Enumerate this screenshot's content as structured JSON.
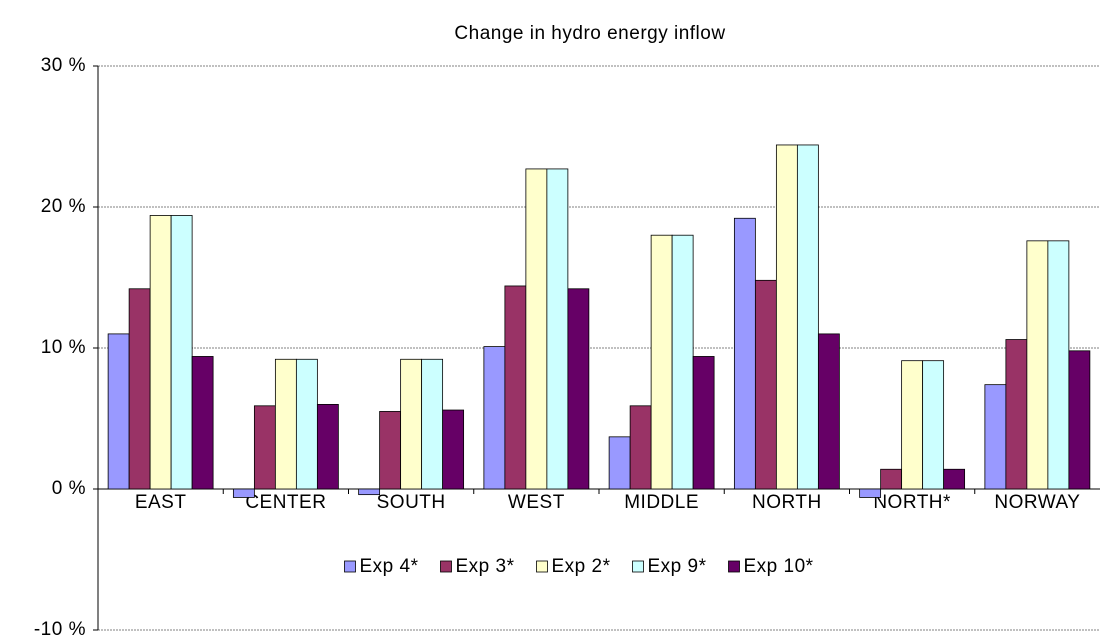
{
  "chart_data": {
    "type": "bar",
    "title": "Change in hydro energy inflow",
    "categories": [
      "EAST",
      "CENTER",
      "SOUTH",
      "WEST",
      "MIDDLE",
      "NORTH",
      "NORTH*",
      "NORWAY"
    ],
    "series": [
      {
        "name": "Exp 4*",
        "color": "#9999ff",
        "values": [
          11.0,
          -0.6,
          -0.4,
          10.1,
          3.7,
          19.2,
          -0.6,
          7.4
        ]
      },
      {
        "name": "Exp 3*",
        "color": "#993366",
        "values": [
          14.2,
          5.9,
          5.5,
          14.4,
          5.9,
          14.8,
          1.4,
          10.6
        ]
      },
      {
        "name": "Exp 2*",
        "color": "#ffffcc",
        "values": [
          19.4,
          9.2,
          9.2,
          22.7,
          18.0,
          24.4,
          9.1,
          17.6
        ]
      },
      {
        "name": "Exp 9*",
        "color": "#ccffff",
        "values": [
          19.4,
          9.2,
          9.2,
          22.7,
          18.0,
          24.4,
          9.1,
          17.6
        ]
      },
      {
        "name": "Exp 10*",
        "color": "#660066",
        "values": [
          9.4,
          6.0,
          5.6,
          14.2,
          9.4,
          11.0,
          1.4,
          9.8
        ]
      }
    ],
    "ylim": [
      -10,
      30
    ],
    "yticks": [
      {
        "value": -10,
        "label": "-10 %"
      },
      {
        "value": 0,
        "label": "0 %"
      },
      {
        "value": 10,
        "label": "10 %"
      },
      {
        "value": 20,
        "label": "20 %"
      },
      {
        "value": 30,
        "label": "30 %"
      }
    ],
    "grid": true,
    "legend": "bottom"
  }
}
